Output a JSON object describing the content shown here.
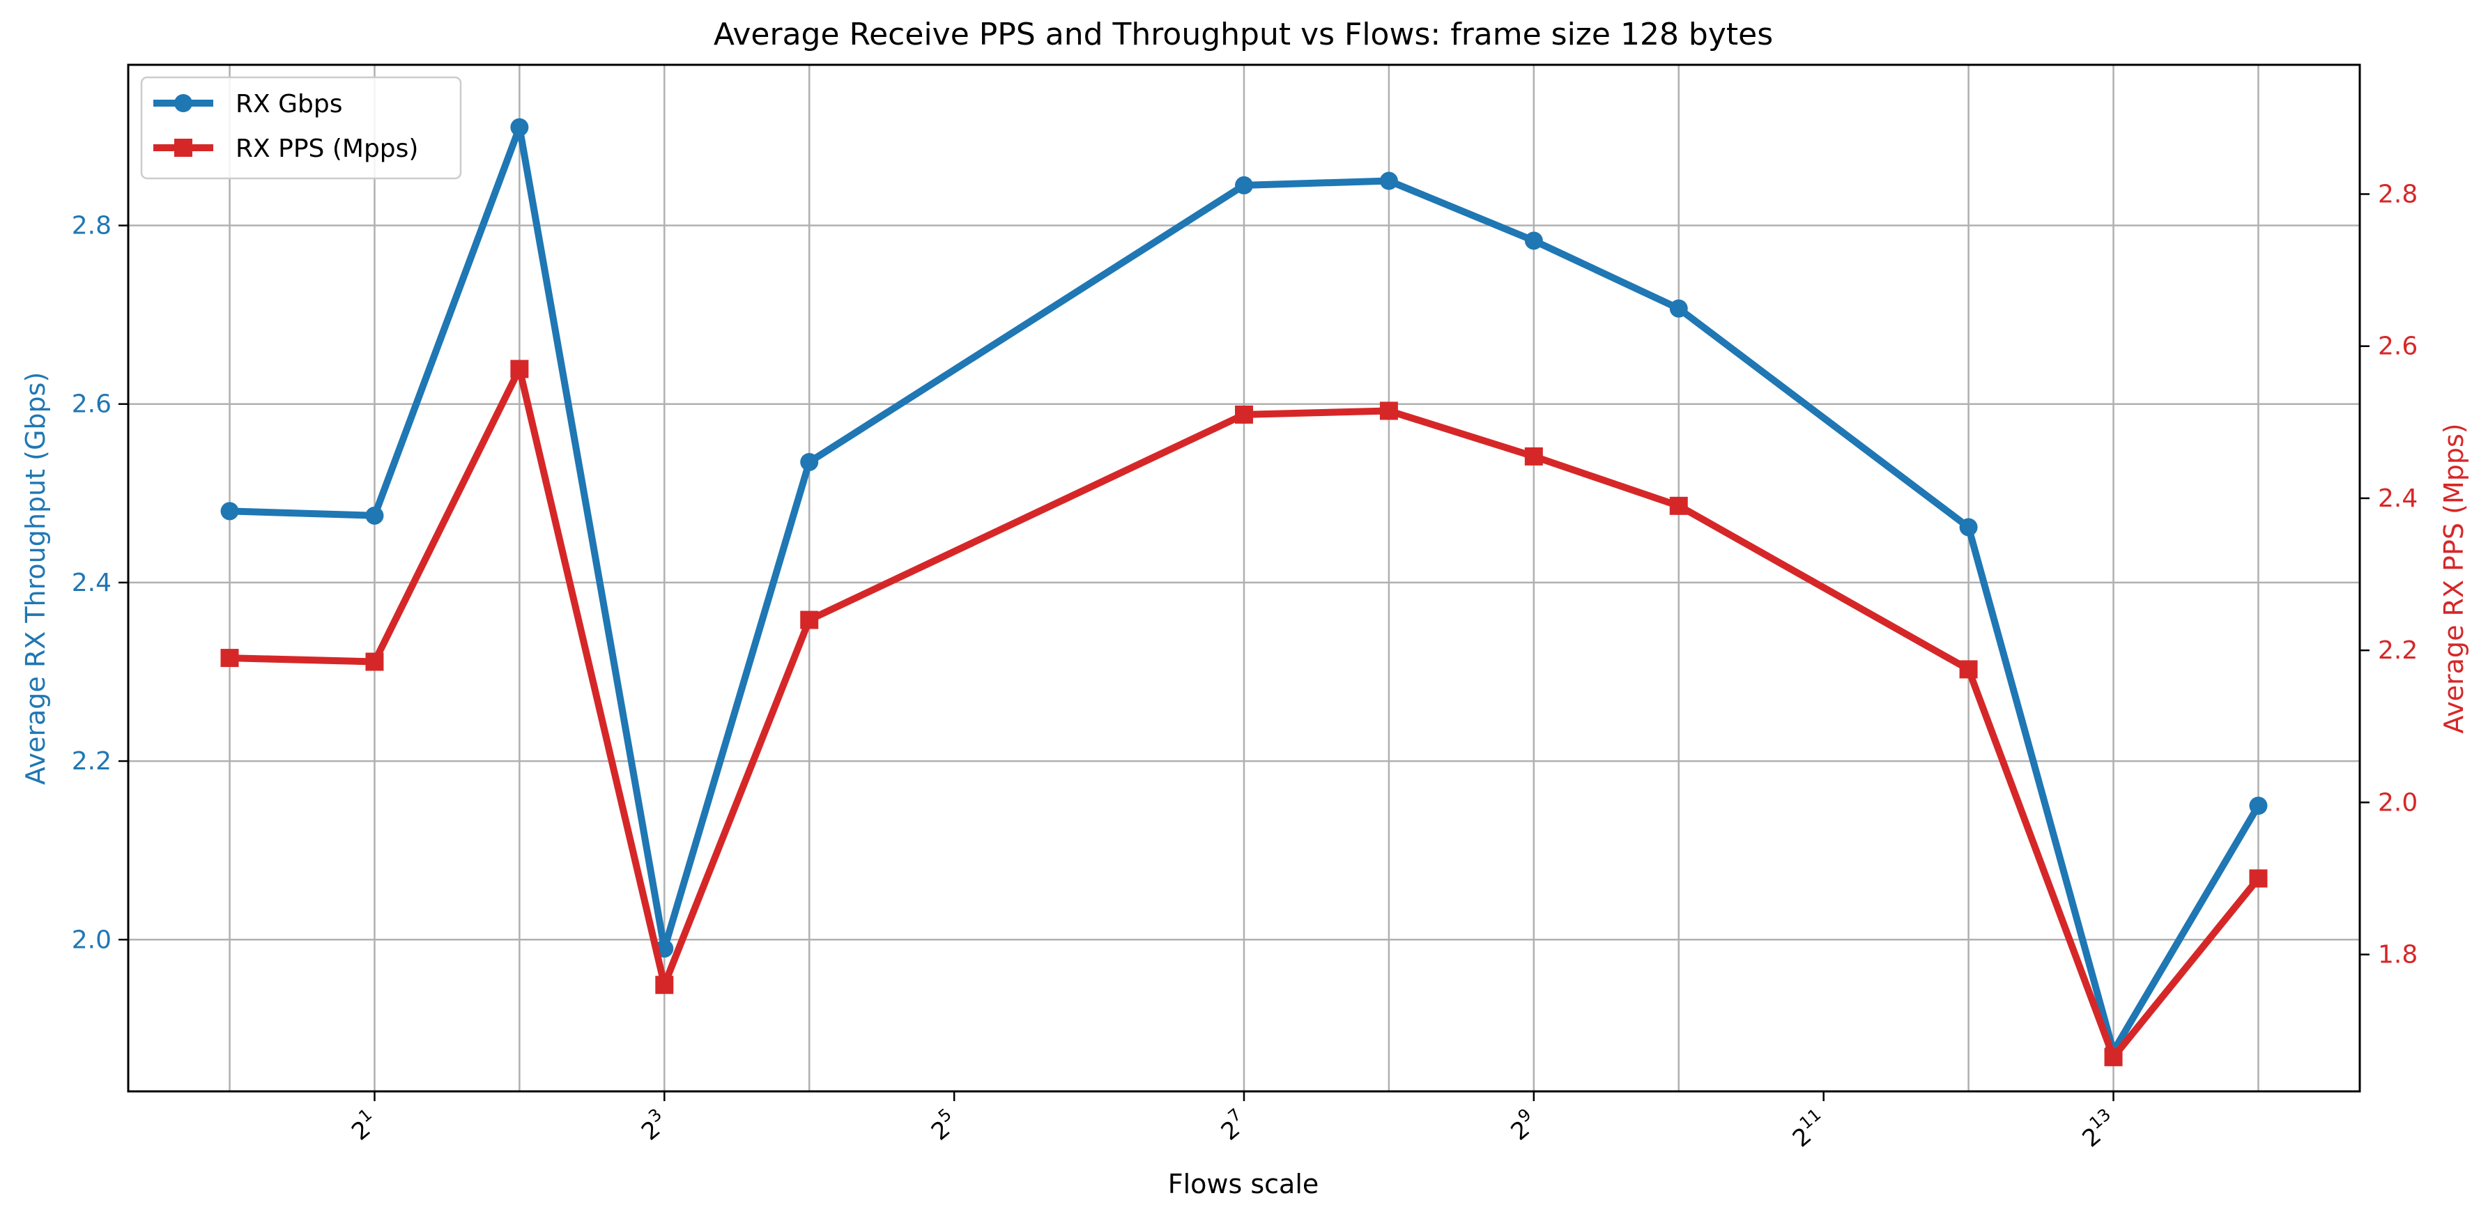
{
  "chart_data": {
    "type": "line",
    "title": "Average Receive PPS and Throughput vs Flows: frame size 128 bytes",
    "xlabel": "Flows scale",
    "x_scale": "log2",
    "x": [
      1,
      2,
      4,
      8,
      16,
      128,
      256,
      512,
      1024,
      4096,
      8192,
      16384
    ],
    "xticks": [
      {
        "exp": 1,
        "base": "2",
        "sup": "1"
      },
      {
        "exp": 3,
        "base": "2",
        "sup": "3"
      },
      {
        "exp": 5,
        "base": "2",
        "sup": "5"
      },
      {
        "exp": 7,
        "base": "2",
        "sup": "7"
      },
      {
        "exp": 9,
        "base": "2",
        "sup": "9"
      },
      {
        "exp": 11,
        "base": "2",
        "sup": "11"
      },
      {
        "exp": 13,
        "base": "2",
        "sup": "13"
      }
    ],
    "xlim_exp": [
      -0.7,
      14.7
    ],
    "grid": true,
    "legend_position": "top-left",
    "y_left": {
      "label": "Average RX Throughput (Gbps)",
      "color": "#1f77b4",
      "ylim": [
        1.83,
        2.98
      ],
      "ticks": [
        "2.0",
        "2.2",
        "2.4",
        "2.6",
        "2.8"
      ]
    },
    "y_right": {
      "label": "Average RX PPS (Mpps)",
      "color": "#d62728",
      "ylim": [
        1.62,
        2.97
      ],
      "ticks": [
        "1.8",
        "2.0",
        "2.2",
        "2.4",
        "2.6",
        "2.8"
      ]
    },
    "series": [
      {
        "name": "RX Gbps",
        "axis": "left",
        "color": "#1f77b4",
        "marker": "circle",
        "values": [
          2.48,
          2.475,
          2.91,
          1.99,
          2.535,
          2.845,
          2.85,
          2.783,
          2.707,
          2.462,
          1.875,
          2.15
        ]
      },
      {
        "name": "RX PPS (Mpps)",
        "axis": "right",
        "color": "#d62728",
        "marker": "square",
        "values": [
          2.19,
          2.185,
          2.57,
          1.76,
          2.24,
          2.51,
          2.515,
          2.455,
          2.39,
          2.175,
          1.665,
          1.9
        ]
      }
    ]
  }
}
